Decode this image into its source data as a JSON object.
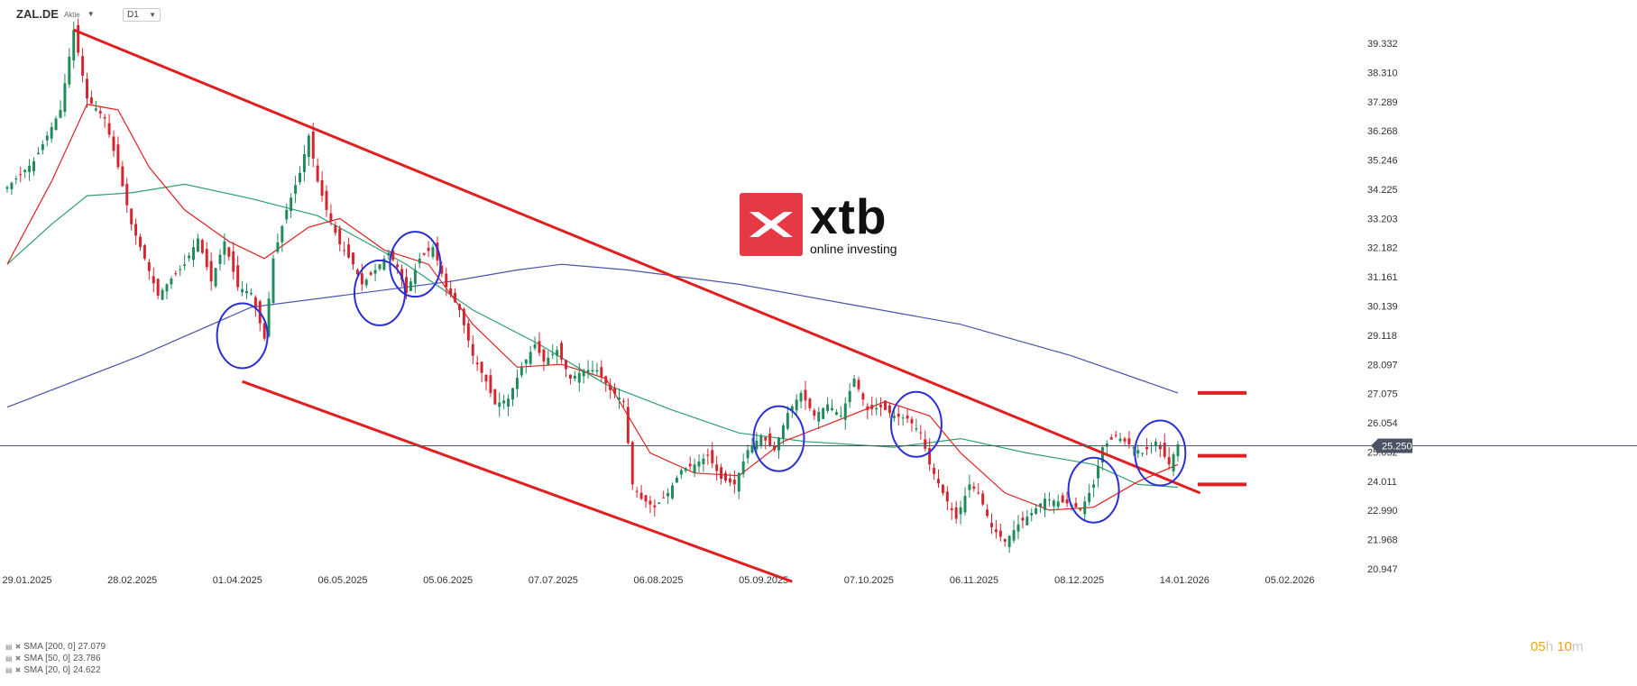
{
  "header": {
    "symbol": "ZAL.DE",
    "instrument_type": "Aktie",
    "timeframe": "D1"
  },
  "watermark": {
    "brand": "xtb",
    "tagline": "online investing"
  },
  "countdown": {
    "hours": "05",
    "hours_unit": "h",
    "minutes": "10",
    "minutes_unit": "m"
  },
  "chart_data": {
    "type": "candlestick",
    "title": "",
    "xlabel": "",
    "ylabel": "",
    "y_axis_labels": [
      "39.332",
      "38.310",
      "37.289",
      "36.268",
      "35.246",
      "34.225",
      "33.203",
      "32.182",
      "31.161",
      "30.139",
      "29.118",
      "28.097",
      "27.075",
      "26.054",
      "25.032",
      "24.011",
      "22.990",
      "21.968",
      "20.947"
    ],
    "ylim": [
      20.947,
      39.332
    ],
    "x_axis_labels": [
      "29.01.2025",
      "28.02.2025",
      "01.04.2025",
      "06.05.2025",
      "05.06.2025",
      "07.07.2025",
      "06.08.2025",
      "05.09.2025",
      "07.10.2025",
      "06.11.2025",
      "08.12.2025",
      "14.01.2026",
      "05.02.2026"
    ],
    "current_price": "25.250",
    "grid": false,
    "legend_position": "bottom-left",
    "price_path": [
      [
        0,
        34.3
      ],
      [
        6,
        35.2
      ],
      [
        12,
        37.0
      ],
      [
        15,
        39.8
      ],
      [
        18,
        37.4
      ],
      [
        22,
        36.7
      ],
      [
        25,
        35.0
      ],
      [
        28,
        33.0
      ],
      [
        31,
        31.8
      ],
      [
        34,
        30.5
      ],
      [
        37,
        31.1
      ],
      [
        40,
        31.6
      ],
      [
        43,
        32.5
      ],
      [
        46,
        31.0
      ],
      [
        49,
        32.4
      ],
      [
        52,
        30.8
      ],
      [
        55,
        30.6
      ],
      [
        58,
        29.0
      ],
      [
        60,
        31.8
      ],
      [
        63,
        33.5
      ],
      [
        66,
        34.8
      ],
      [
        68,
        36.1
      ],
      [
        70,
        34.5
      ],
      [
        72,
        33.5
      ],
      [
        75,
        32.3
      ],
      [
        78,
        31.6
      ],
      [
        80,
        30.9
      ],
      [
        83,
        31.4
      ],
      [
        86,
        32.0
      ],
      [
        88,
        31.5
      ],
      [
        90,
        30.6
      ],
      [
        93,
        31.8
      ],
      [
        96,
        32.2
      ],
      [
        99,
        30.8
      ],
      [
        102,
        30.0
      ],
      [
        105,
        28.4
      ],
      [
        108,
        27.5
      ],
      [
        110,
        26.7
      ],
      [
        113,
        26.9
      ],
      [
        116,
        28.0
      ],
      [
        119,
        28.8
      ],
      [
        121,
        28.2
      ],
      [
        124,
        28.6
      ],
      [
        127,
        27.6
      ],
      [
        130,
        27.9
      ],
      [
        133,
        27.9
      ],
      [
        136,
        27.2
      ],
      [
        139,
        26.8
      ],
      [
        141,
        23.9
      ],
      [
        143,
        23.4
      ],
      [
        146,
        23.1
      ],
      [
        149,
        23.6
      ],
      [
        152,
        24.4
      ],
      [
        155,
        24.6
      ],
      [
        158,
        24.9
      ],
      [
        161,
        24.1
      ],
      [
        164,
        23.9
      ],
      [
        167,
        25.1
      ],
      [
        170,
        25.6
      ],
      [
        173,
        25.1
      ],
      [
        176,
        26.4
      ],
      [
        179,
        27.1
      ],
      [
        182,
        26.3
      ],
      [
        185,
        26.7
      ],
      [
        188,
        26.3
      ],
      [
        191,
        27.6
      ],
      [
        194,
        26.5
      ],
      [
        197,
        26.6
      ],
      [
        200,
        26.3
      ],
      [
        203,
        26.2
      ],
      [
        206,
        25.7
      ],
      [
        208,
        24.6
      ],
      [
        211,
        23.6
      ],
      [
        214,
        22.7
      ],
      [
        217,
        23.9
      ],
      [
        219,
        23.6
      ],
      [
        222,
        22.4
      ],
      [
        225,
        21.9
      ],
      [
        228,
        22.5
      ],
      [
        231,
        22.9
      ],
      [
        234,
        23.4
      ],
      [
        237,
        23.3
      ],
      [
        240,
        23.2
      ],
      [
        242,
        23.0
      ],
      [
        245,
        23.9
      ],
      [
        247,
        25.2
      ],
      [
        250,
        25.6
      ],
      [
        253,
        25.3
      ],
      [
        256,
        25.0
      ],
      [
        259,
        25.4
      ],
      [
        262,
        24.6
      ],
      [
        264,
        25.3
      ]
    ],
    "series": [
      {
        "name": "SMA [200, 0]",
        "value": "27.079",
        "color": "#4a54a8",
        "points": [
          [
            0,
            26.6
          ],
          [
            30,
            28.4
          ],
          [
            55,
            30.1
          ],
          [
            75,
            30.5
          ],
          [
            100,
            31.0
          ],
          [
            115,
            31.4
          ],
          [
            125,
            31.6
          ],
          [
            140,
            31.4
          ],
          [
            165,
            30.9
          ],
          [
            190,
            30.2
          ],
          [
            215,
            29.5
          ],
          [
            240,
            28.4
          ],
          [
            264,
            27.1
          ]
        ]
      },
      {
        "name": "SMA [50, 0]",
        "value": "23.786",
        "color": "#2e9e70",
        "points": [
          [
            0,
            31.6
          ],
          [
            10,
            33.0
          ],
          [
            18,
            34.0
          ],
          [
            28,
            34.1
          ],
          [
            40,
            34.4
          ],
          [
            55,
            33.9
          ],
          [
            70,
            33.3
          ],
          [
            90,
            31.6
          ],
          [
            105,
            30.0
          ],
          [
            120,
            28.8
          ],
          [
            135,
            27.4
          ],
          [
            150,
            26.5
          ],
          [
            165,
            25.7
          ],
          [
            180,
            25.4
          ],
          [
            200,
            25.2
          ],
          [
            215,
            25.5
          ],
          [
            230,
            25.0
          ],
          [
            245,
            24.6
          ],
          [
            255,
            23.9
          ],
          [
            264,
            23.8
          ]
        ]
      },
      {
        "name": "SMA [20, 0]",
        "value": "24.622",
        "color": "#e02020",
        "points": [
          [
            0,
            31.6
          ],
          [
            10,
            34.5
          ],
          [
            18,
            37.2
          ],
          [
            25,
            37.0
          ],
          [
            32,
            35.0
          ],
          [
            40,
            33.5
          ],
          [
            50,
            32.4
          ],
          [
            58,
            31.8
          ],
          [
            68,
            32.9
          ],
          [
            75,
            33.2
          ],
          [
            85,
            32.1
          ],
          [
            95,
            31.6
          ],
          [
            105,
            29.5
          ],
          [
            115,
            28.0
          ],
          [
            125,
            28.1
          ],
          [
            135,
            27.6
          ],
          [
            145,
            25.0
          ],
          [
            155,
            24.3
          ],
          [
            165,
            24.2
          ],
          [
            175,
            25.4
          ],
          [
            185,
            26.0
          ],
          [
            198,
            26.8
          ],
          [
            208,
            26.3
          ],
          [
            215,
            25.0
          ],
          [
            225,
            23.6
          ],
          [
            235,
            23.0
          ],
          [
            245,
            23.1
          ],
          [
            255,
            24.0
          ],
          [
            264,
            24.6
          ]
        ]
      }
    ],
    "channel_lines": [
      {
        "from": [
          15,
          39.8
        ],
        "to": [
          269,
          23.6
        ],
        "color": "#e02020"
      },
      {
        "from": [
          53,
          27.5
        ],
        "to": [
          177,
          20.5
        ],
        "color": "#e02020"
      }
    ],
    "level_markers": [
      27.1,
      24.9,
      23.9
    ],
    "circled_points": [
      [
        53,
        29.1
      ],
      [
        84,
        30.6
      ],
      [
        92,
        31.6
      ],
      [
        174,
        25.5
      ],
      [
        205,
        26.0
      ],
      [
        245,
        23.7
      ],
      [
        260,
        25.0
      ]
    ]
  }
}
